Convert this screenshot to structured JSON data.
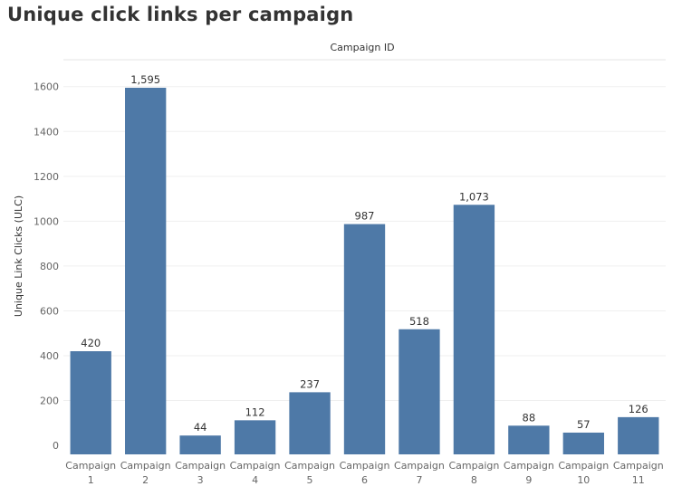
{
  "title": "Unique click links per campaign",
  "chart_data": {
    "type": "bar",
    "title": "Unique click links per campaign",
    "header": "Campaign ID",
    "xlabel": "",
    "ylabel": "Unique Link Clicks (ULC)",
    "categories": [
      [
        "Campaign",
        "1"
      ],
      [
        "Campaign",
        "2"
      ],
      [
        "Campaign",
        "3"
      ],
      [
        "Campaign",
        "4"
      ],
      [
        "Campaign",
        "5"
      ],
      [
        "Campaign",
        "6"
      ],
      [
        "Campaign",
        "7"
      ],
      [
        "Campaign",
        "8"
      ],
      [
        "Campaign",
        "9"
      ],
      [
        "Campaign",
        "10"
      ],
      [
        "Campaign",
        "11"
      ]
    ],
    "values": [
      420,
      1595,
      44,
      112,
      237,
      987,
      518,
      1073,
      88,
      57,
      126
    ],
    "value_labels": [
      "420",
      "1,595",
      "44",
      "112",
      "237",
      "987",
      "518",
      "1,073",
      "88",
      "57",
      "126"
    ],
    "yticks": [
      0,
      200,
      400,
      600,
      800,
      1000,
      1200,
      1400,
      1600
    ],
    "ylim": [
      -40,
      1720
    ],
    "grid": true,
    "bar_color": "#4e79a7"
  }
}
